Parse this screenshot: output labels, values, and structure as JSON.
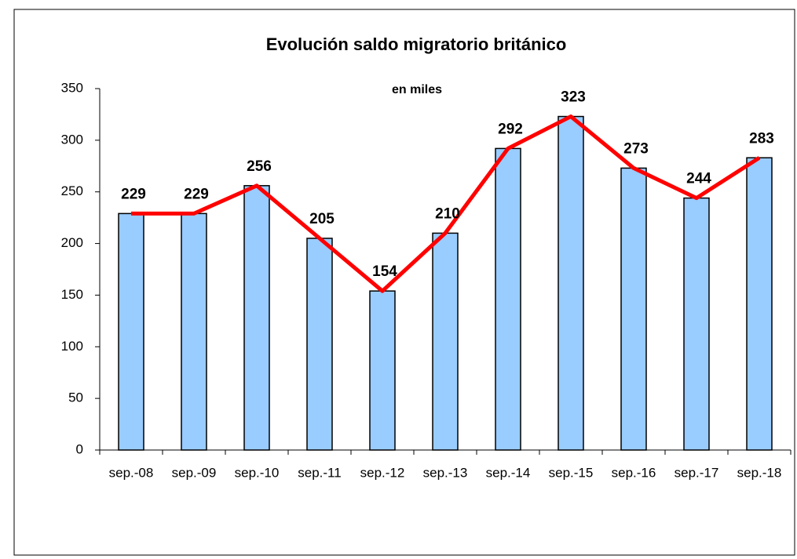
{
  "chart_data": {
    "type": "bar",
    "title": "Evolución saldo migratorio británico",
    "subtitle": "en miles",
    "categories": [
      "sep.-08",
      "sep.-09",
      "sep.-10",
      "sep.-11",
      "sep.-12",
      "sep.-13",
      "sep.-14",
      "sep.-15",
      "sep.-16",
      "sep.-17",
      "sep.-18"
    ],
    "series": [
      {
        "type": "bar",
        "color": "#99ccff",
        "values": [
          229,
          229,
          256,
          205,
          154,
          210,
          292,
          323,
          273,
          244,
          283
        ]
      },
      {
        "type": "line",
        "color": "#ff0000",
        "values": [
          229,
          229,
          256,
          205,
          154,
          210,
          292,
          323,
          273,
          244,
          283
        ]
      }
    ],
    "ylim": [
      0,
      350
    ],
    "yticks": [
      0,
      50,
      100,
      150,
      200,
      250,
      300,
      350
    ],
    "grid": false
  }
}
